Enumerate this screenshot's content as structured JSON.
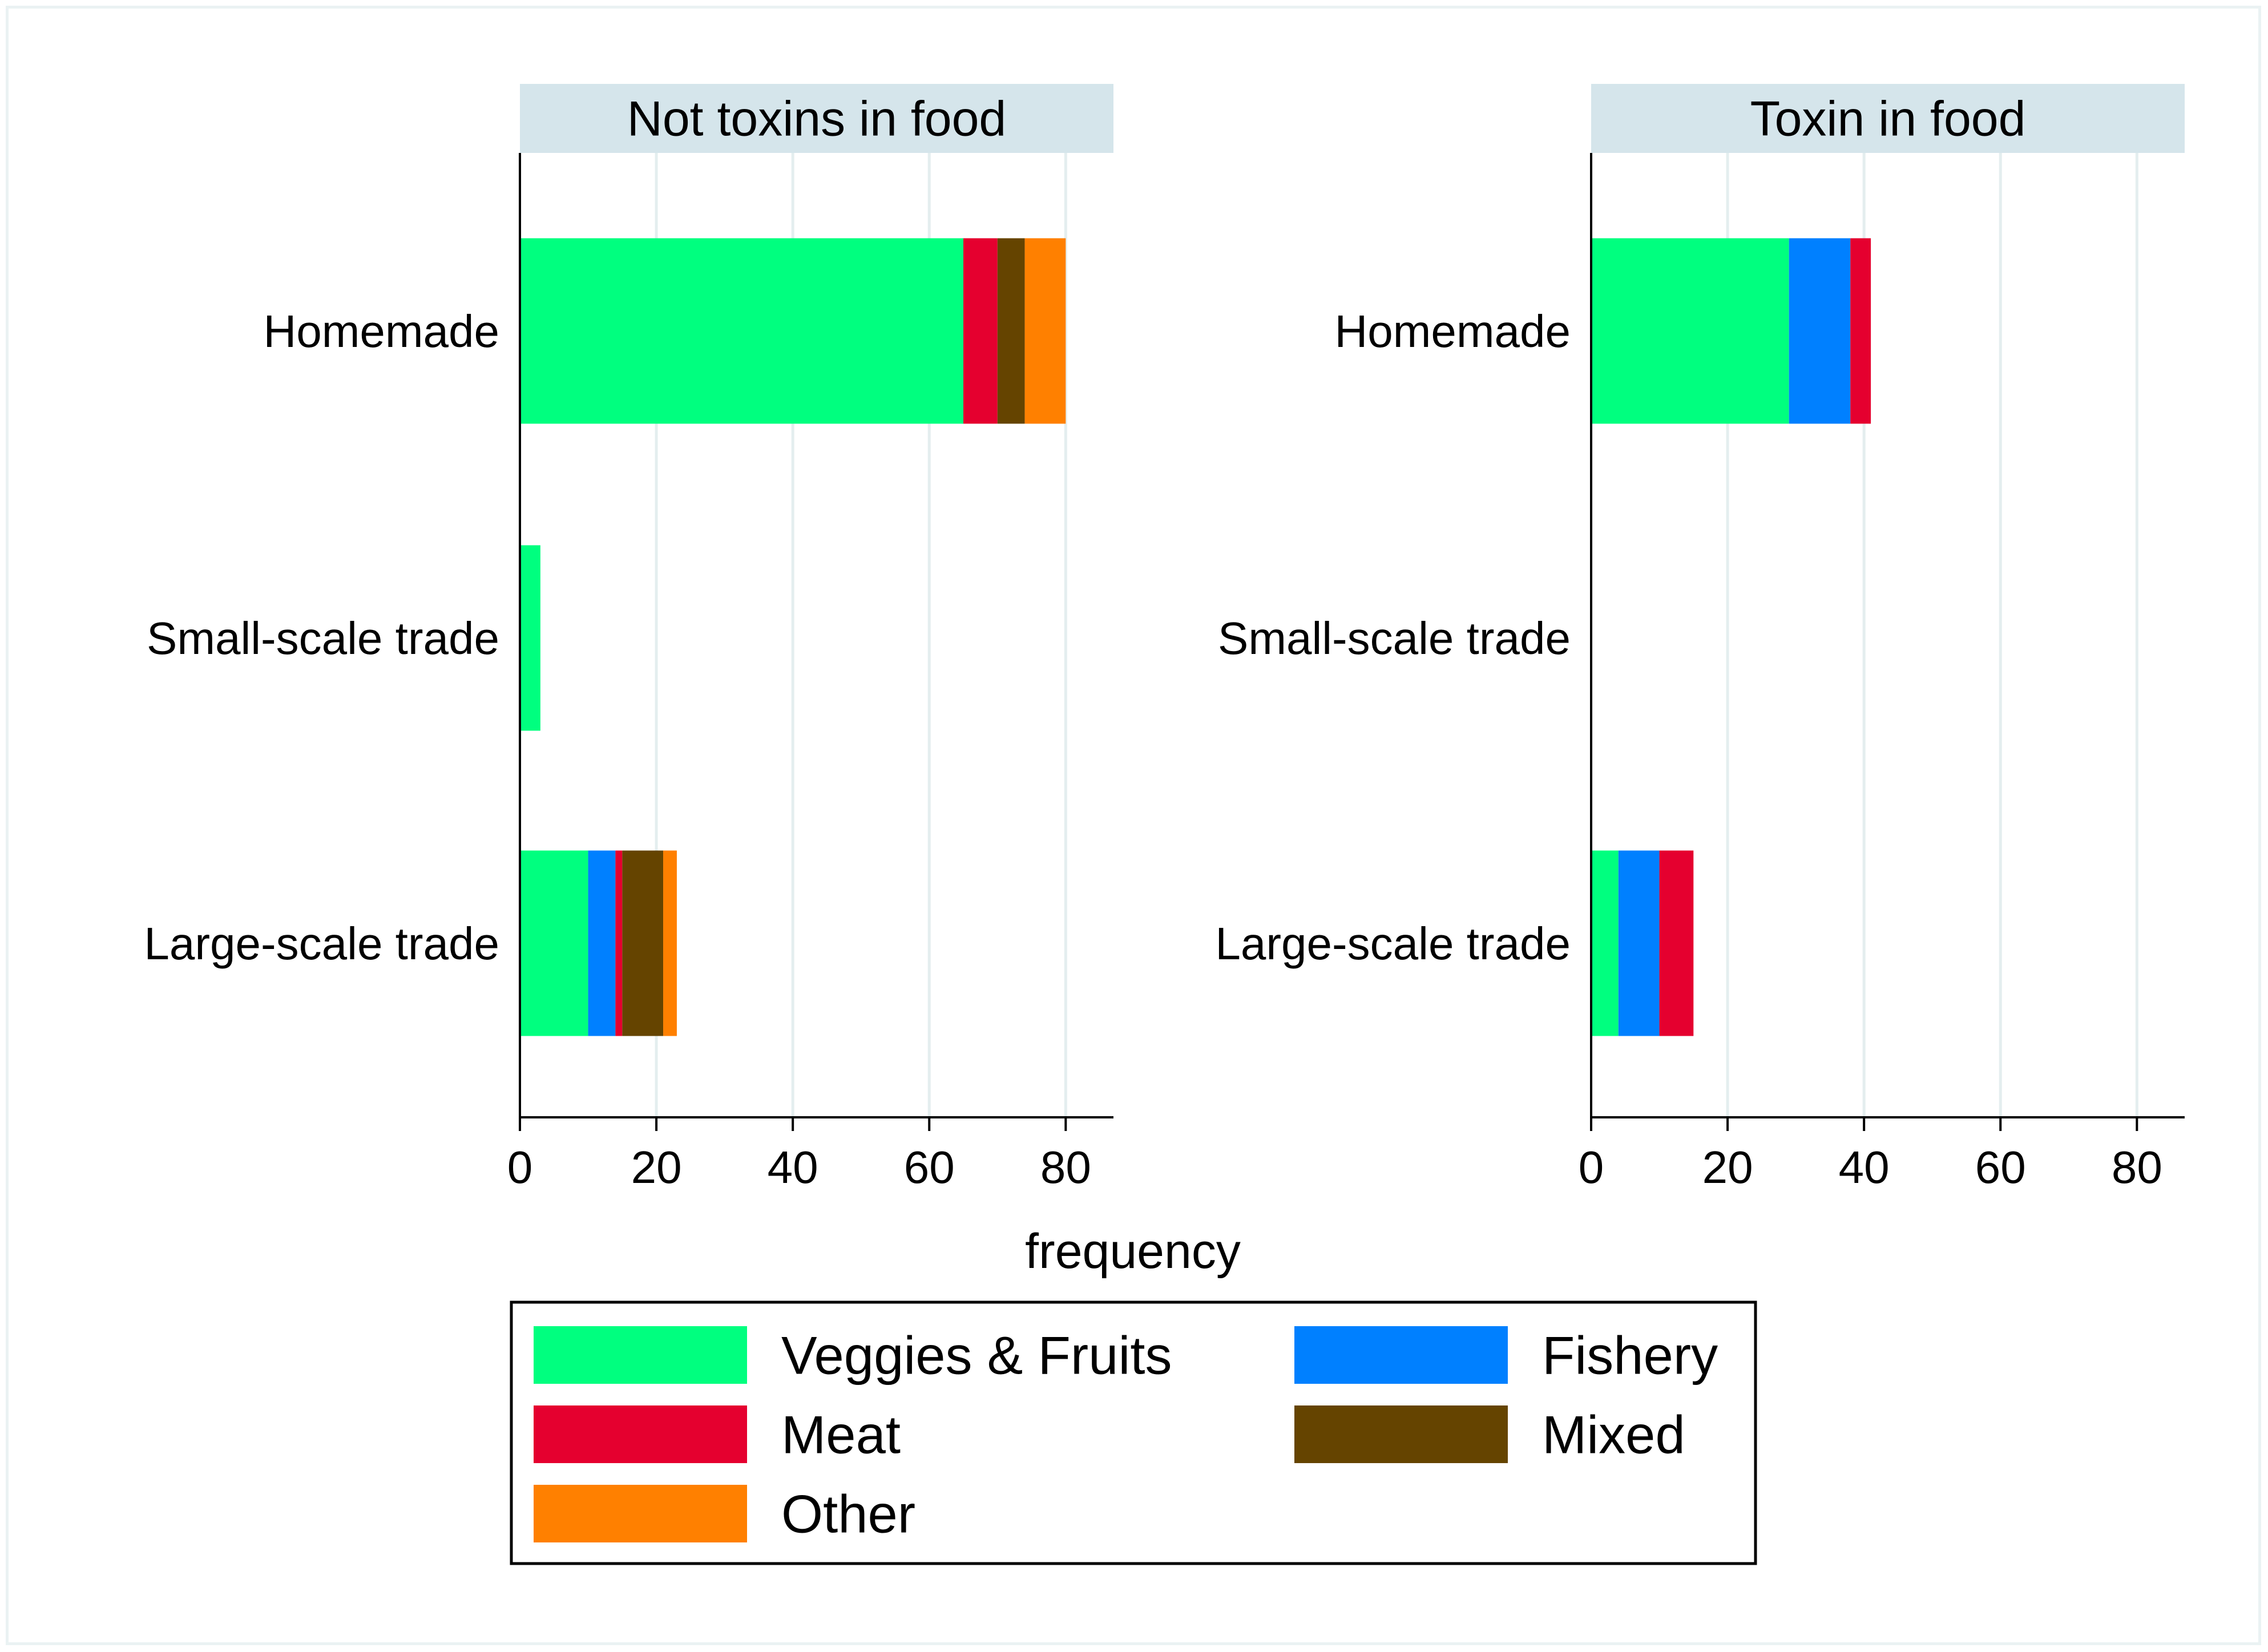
{
  "chart_data": {
    "type": "bar",
    "orientation": "horizontal",
    "stacked": true,
    "xlabel": "frequency",
    "xlim": [
      0,
      87
    ],
    "xticks": [
      0,
      20,
      40,
      60,
      80
    ],
    "categories": [
      "Homemade",
      "Small-scale trade",
      "Large-scale trade"
    ],
    "colors": {
      "Veggies & Fruits": "#00ff7f",
      "Fishery": "#0080ff",
      "Meat": "#e5002f",
      "Mixed": "#654400",
      "Other": "#ff8000",
      "strip": "#d5e5eb",
      "grid": "#e4eeef"
    },
    "legend": {
      "position": "bottom",
      "entries": [
        "Veggies & Fruits",
        "Fishery",
        "Meat",
        "Mixed",
        "Other"
      ]
    },
    "panels": [
      {
        "title": "Not toxins in food",
        "series": [
          {
            "name": "Veggies & Fruits",
            "values": [
              65,
              3,
              10
            ]
          },
          {
            "name": "Fishery",
            "values": [
              0,
              0,
              4
            ]
          },
          {
            "name": "Meat",
            "values": [
              5,
              0,
              1
            ]
          },
          {
            "name": "Mixed",
            "values": [
              4,
              0,
              6
            ]
          },
          {
            "name": "Other",
            "values": [
              6,
              0,
              2
            ]
          }
        ]
      },
      {
        "title": "Toxin in food",
        "series": [
          {
            "name": "Veggies & Fruits",
            "values": [
              29,
              0,
              4
            ]
          },
          {
            "name": "Fishery",
            "values": [
              9,
              0,
              6
            ]
          },
          {
            "name": "Meat",
            "values": [
              3,
              0,
              5
            ]
          },
          {
            "name": "Mixed",
            "values": [
              0,
              0,
              0
            ]
          },
          {
            "name": "Other",
            "values": [
              0,
              0,
              0
            ]
          }
        ]
      }
    ]
  }
}
